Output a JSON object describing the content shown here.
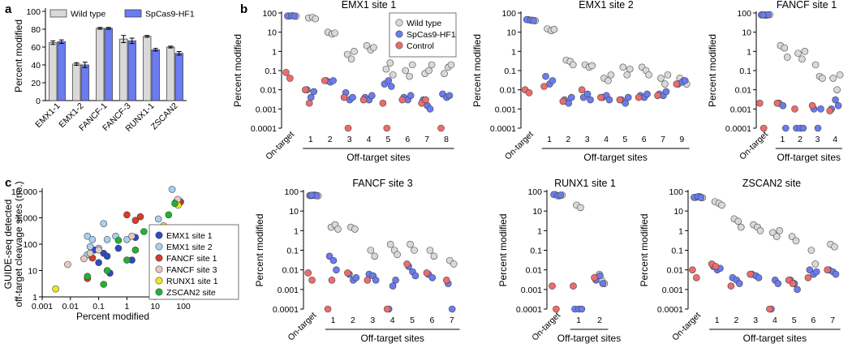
{
  "panel_labels": [
    "a",
    "b",
    "c"
  ],
  "colors": {
    "wild_type": "#d9d9d9",
    "spcas9_hf1": "#6b7bf0",
    "control": "#ef6b6b"
  },
  "chart_data": [
    {
      "panel": "a",
      "type": "bar",
      "ylabel": "Percent modified",
      "ylim": [
        0,
        100
      ],
      "yticks": [
        "0",
        "20",
        "40",
        "60",
        "80",
        "100"
      ],
      "categories": [
        "EMX1-1",
        "EMX1-2",
        "FANCF-1",
        "FANCF-3",
        "RUNX1-1",
        "ZSCAN2"
      ],
      "series": [
        {
          "name": "Wild type",
          "values": [
            65,
            41,
            81,
            69,
            72,
            60
          ],
          "errors": [
            2,
            1.5,
            1,
            4,
            1,
            1
          ]
        },
        {
          "name": "SpCas9-HF1",
          "values": [
            66,
            40,
            81,
            67,
            57,
            53
          ],
          "errors": [
            2,
            3,
            1,
            3,
            1.5,
            2
          ]
        }
      ]
    },
    {
      "panel": "b",
      "type": "scatter",
      "title": "EMX1 site 1",
      "ylabel": "Percent modified",
      "yscale": "log",
      "yticks": [
        "100",
        "10",
        "1",
        "0.1",
        "0.01",
        "0.001",
        "0.0001"
      ],
      "xgroup_label": "Off-target sites",
      "sites": [
        "On-target",
        "1",
        "2",
        "3",
        "4",
        "5",
        "6",
        "7",
        "8"
      ],
      "legend": [
        "Wild type",
        "SpCas9-HF1",
        "Control"
      ],
      "wild_type": [
        [
          70,
          72,
          68
        ],
        [
          55,
          60,
          50
        ],
        [
          10,
          8,
          9
        ],
        [
          0.7,
          0.4,
          1.0
        ],
        [
          2,
          1.2,
          1.6
        ],
        [
          0.12,
          0.25,
          0.06
        ],
        [
          0.1,
          0.05,
          0.2
        ],
        [
          0.07,
          0.1,
          0.2
        ],
        [
          0.07,
          0.15,
          0.2
        ]
      ],
      "spcas9_hf1": [
        [
          70,
          72,
          68
        ],
        [
          0.01,
          0.004,
          0.008
        ],
        [
          0.03,
          0.025,
          0.03
        ],
        [
          0.007,
          0.003,
          0.004
        ],
        [
          0.004,
          0.003,
          0.005
        ],
        [
          0.02,
          0.03,
          0.015
        ],
        [
          0.004,
          0.003,
          0.005
        ],
        [
          0.003,
          0.0015,
          0.001
        ],
        [
          0.006,
          0.004,
          0.005
        ]
      ],
      "control": [
        [
          0.08,
          0.04
        ],
        [
          0.01,
          0.002
        ],
        [
          0.03
        ],
        [
          0.004,
          0.0001
        ],
        [
          0.003
        ],
        [
          0.002,
          0.0001
        ],
        [
          0.003
        ],
        [
          0.002,
          0.003
        ],
        [
          0.0001
        ]
      ]
    },
    {
      "panel": "b",
      "type": "scatter",
      "title": "EMX1 site 2",
      "ylabel": "Percent modified",
      "yscale": "log",
      "yticks": [
        "100",
        "10",
        "1",
        "0.1",
        "0.01",
        "0.001",
        "0.0001"
      ],
      "xgroup_label": "Off-target sites",
      "sites": [
        "On-target",
        "1",
        "2",
        "3",
        "4",
        "5",
        "6",
        "7",
        "9"
      ],
      "wild_type": [
        [
          45,
          42,
          40
        ],
        [
          15,
          12,
          14
        ],
        [
          0.35,
          0.3,
          0.2
        ],
        [
          0.2,
          0.15,
          0.18
        ],
        [
          0.04,
          0.03,
          0.06
        ],
        [
          0.15,
          0.06,
          0.12
        ],
        [
          0.15,
          0.1,
          0.06
        ],
        [
          0.04,
          0.02,
          0.06
        ],
        [
          0.04,
          0.03,
          0.02
        ]
      ],
      "spcas9_hf1": [
        [
          45,
          42,
          40
        ],
        [
          0.05,
          0.02,
          0.03
        ],
        [
          0.003,
          0.002,
          0.004
        ],
        [
          0.004,
          0.006,
          0.003
        ],
        [
          0.004,
          0.005,
          0.003
        ],
        [
          0.003,
          0.002,
          0.004
        ],
        [
          0.005,
          0.004,
          0.006
        ],
        [
          0.006,
          0.005,
          0.008
        ],
        [
          0.02,
          0.025,
          0.03
        ]
      ],
      "control": [
        [
          0.01,
          0.007
        ],
        [
          0.015
        ],
        [
          0.0025
        ],
        [
          0.01
        ],
        [
          0.004
        ],
        [
          0.003
        ],
        [
          0.004
        ],
        [
          0.005
        ],
        [
          0.02
        ]
      ]
    },
    {
      "panel": "b",
      "type": "scatter",
      "title": "FANCF site 1",
      "ylabel": "Percent modified",
      "yscale": "log",
      "yticks": [
        "100",
        "10",
        "1",
        "0.1",
        "0.01",
        "0.001",
        "0.0001"
      ],
      "xgroup_label": "Off-target sites",
      "sites": [
        "On-target",
        "1",
        "2",
        "3",
        "4"
      ],
      "wild_type": [
        [
          80,
          78,
          82,
          79
        ],
        [
          2,
          1.5,
          0.5
        ],
        [
          0.8,
          0.4,
          1.0
        ],
        [
          0.2,
          0.05,
          0.04
        ],
        [
          0.04,
          0.01,
          0.06
        ]
      ],
      "spcas9_hf1": [
        [
          80,
          78,
          82,
          79
        ],
        [
          0.002,
          0.0015,
          0.0001
        ],
        [
          0.0001,
          0.0001,
          0.0001
        ],
        [
          0.001,
          0.0001,
          0.001
        ],
        [
          0.001,
          0.003,
          0.0015
        ]
      ],
      "control": [
        [
          0.002,
          0.0001
        ],
        [
          0.002
        ],
        [
          0.001
        ],
        [
          0.0015
        ],
        [
          0.0008
        ]
      ]
    },
    {
      "panel": "b",
      "type": "scatter",
      "title": "FANCF site 3",
      "ylabel": "Percent modified",
      "yscale": "log",
      "yticks": [
        "100",
        "10",
        "1",
        "0.1",
        "0.01",
        "0.001",
        "0.0001"
      ],
      "xgroup_label": "Off-target sites",
      "sites": [
        "On-target",
        "1",
        "2",
        "3",
        "4",
        "5",
        "6",
        "7"
      ],
      "wild_type": [
        [
          62,
          65,
          60,
          64
        ],
        [
          1.5,
          2,
          1.2
        ],
        [
          1.5,
          1.2
        ],
        [
          0.1,
          0.05
        ],
        [
          0.2,
          0.1,
          0.06
        ],
        [
          0.2,
          0.1
        ],
        [
          0.1,
          0.05
        ],
        [
          0.03,
          0.02
        ]
      ],
      "spcas9_hf1": [
        [
          62,
          65,
          60,
          64
        ],
        [
          0.05,
          0.03,
          0.01
        ],
        [
          0.006,
          0.003,
          0.004
        ],
        [
          0.006,
          0.005,
          0.003
        ],
        [
          0.0001,
          0.0015,
          0.003
        ],
        [
          0.015,
          0.008,
          0.005
        ],
        [
          0.006,
          0.004
        ],
        [
          0.002,
          0.0001
        ]
      ],
      "control": [
        [
          0.007,
          0.003
        ],
        [
          0.0001,
          0.003
        ],
        [
          0.007
        ],
        [
          0.003
        ],
        [
          0.0001
        ],
        [
          0.02
        ],
        [
          0.007
        ],
        [
          0.003
        ]
      ]
    },
    {
      "panel": "b",
      "type": "scatter",
      "title": "RUNX1 site 1",
      "ylabel": "Percent modified",
      "yscale": "log",
      "yticks": [
        "100",
        "10",
        "1",
        "0.1",
        "0.01",
        "0.001",
        "0.0001"
      ],
      "xgroup_label": "Off-target sites",
      "sites": [
        "On-target",
        "1",
        "2"
      ],
      "wild_type": [
        [
          70,
          60,
          65
        ],
        [
          20,
          15
        ],
        [
          0.004,
          0.003,
          0.002,
          0.006
        ]
      ],
      "spcas9_hf1": [
        [
          70,
          60,
          65
        ],
        [
          0.0001,
          0.0001,
          0.0001
        ],
        [
          0.003,
          0.005,
          0.002
        ]
      ],
      "control": [
        [
          0.0015,
          0.0001
        ],
        [
          0.0015
        ],
        [
          0.004
        ]
      ]
    },
    {
      "panel": "b",
      "type": "scatter",
      "title": "ZSCAN2 site",
      "ylabel": "Percent modified",
      "yscale": "log",
      "yticks": [
        "100",
        "10",
        "1",
        "0.1",
        "0.01",
        "0.001",
        "0.0001"
      ],
      "xgroup_label": "Off-target sites",
      "sites": [
        "On-target",
        "1",
        "2",
        "3",
        "4",
        "5",
        "6",
        "7"
      ],
      "wild_type": [
        [
          50,
          55,
          48
        ],
        [
          30,
          25,
          20
        ],
        [
          4,
          3,
          1.5
        ],
        [
          2,
          1.5,
          1
        ],
        [
          0.8,
          0.5,
          1.0
        ],
        [
          0.5,
          0.3
        ],
        [
          0.1,
          0.02
        ],
        [
          0.2,
          0.15
        ]
      ],
      "spcas9_hf1": [
        [
          50,
          55,
          48
        ],
        [
          0.015,
          0.01,
          0.012
        ],
        [
          0.004,
          0.003,
          0.002
        ],
        [
          0.006,
          0.005,
          0.004
        ],
        [
          0.0001,
          0.003,
          0.002
        ],
        [
          0.003,
          0.002,
          0.001
        ],
        [
          0.01,
          0.006,
          0.008
        ],
        [
          0.01,
          0.008,
          0.006
        ]
      ],
      "control": [
        [
          0.01,
          0.004
        ],
        [
          0.02,
          0.015
        ],
        [
          0.0015
        ],
        [
          0.006
        ],
        [
          0.0001
        ],
        [
          0.003,
          0.002
        ],
        [
          0.004
        ],
        [
          0.01
        ]
      ]
    },
    {
      "panel": "c",
      "type": "scatter",
      "xscale": "log",
      "yscale": "log",
      "xlabel": "Percent modified",
      "ylabel_lines": [
        "GUIDE-seq detected",
        "off-target cleavage sites (no.)"
      ],
      "xticks": [
        "0.001",
        "0.01",
        "0.1",
        "1",
        "10",
        "100"
      ],
      "yticks": [
        "1",
        "10",
        "100",
        "1,000",
        "10,000"
      ],
      "series": [
        {
          "name": "EMX1 site 1",
          "color": "#2e48c8",
          "points": [
            [
              0.06,
              30
            ],
            [
              0.07,
              60
            ],
            [
              0.1,
              20
            ],
            [
              0.15,
              45
            ],
            [
              0.2,
              35
            ],
            [
              0.25,
              8
            ],
            [
              0.5,
              70
            ],
            [
              1.5,
              25
            ],
            [
              2,
              180
            ],
            [
              55,
              4000
            ],
            [
              60,
              3500
            ]
          ]
        },
        {
          "name": "EMX1 site 2",
          "color": "#a8d0ef",
          "points": [
            [
              0.04,
              200
            ],
            [
              0.04,
              40
            ],
            [
              0.05,
              80
            ],
            [
              0.06,
              150
            ],
            [
              0.1,
              70
            ],
            [
              0.15,
              600
            ],
            [
              0.2,
              150
            ],
            [
              0.4,
              200
            ],
            [
              1,
              150
            ],
            [
              13,
              900
            ],
            [
              40,
              12000
            ]
          ]
        },
        {
          "name": "FANCF site 1",
          "color": "#d73c2c",
          "points": [
            [
              0.04,
              5
            ],
            [
              0.06,
              30
            ],
            [
              1,
              1300
            ],
            [
              2,
              800
            ],
            [
              3,
              1100
            ],
            [
              80,
              4000
            ],
            [
              70,
              4500
            ]
          ]
        },
        {
          "name": "FANCF site 3",
          "color": "#e5c8c0",
          "points": [
            [
              0.008,
              17
            ],
            [
              0.03,
              28
            ],
            [
              0.05,
              45
            ],
            [
              0.1,
              60
            ],
            [
              1.5,
              200
            ],
            [
              63,
              5000
            ]
          ]
        },
        {
          "name": "RUNX1 site 1",
          "color": "#ece820",
          "points": [
            [
              0.003,
              2
            ],
            [
              20,
              500
            ],
            [
              65,
              3000
            ]
          ]
        },
        {
          "name": "ZSCAN2 site",
          "color": "#22b232",
          "points": [
            [
              0.04,
              6
            ],
            [
              0.15,
              3
            ],
            [
              0.2,
              10
            ],
            [
              0.5,
              140
            ],
            [
              1,
              25
            ],
            [
              2,
              60
            ],
            [
              4,
              300
            ],
            [
              30,
              1300
            ],
            [
              50,
              3500
            ]
          ]
        }
      ]
    }
  ]
}
